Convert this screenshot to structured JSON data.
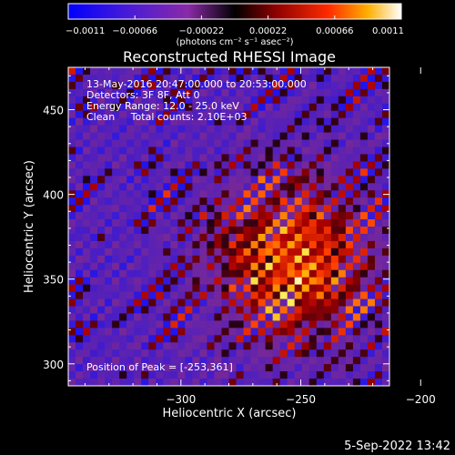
{
  "chart_data": {
    "type": "heatmap",
    "title": "Reconstructed RHESSI Image",
    "xlabel": "Heliocentric X (arcsec)",
    "ylabel": "Heliocentric Y (arcsec)",
    "xlim": [
      -347,
      -213
    ],
    "ylim": [
      287,
      475
    ],
    "xticks": [
      -300,
      -250,
      -200
    ],
    "xtick_labels": [
      "−300",
      "−250",
      "−200"
    ],
    "yticks": [
      300,
      350,
      400,
      450
    ],
    "ytick_labels": [
      "300",
      "350",
      "400",
      "450"
    ],
    "grid": false,
    "colormap": "RHESSI hot (blue-purple-black-red-yellow-white)",
    "colorbar": {
      "min": -0.0011,
      "max": 0.0011,
      "ticks": [
        -0.0011,
        -0.00066,
        -0.00022,
        0.00022,
        0.00066,
        0.0011
      ],
      "tick_labels": [
        "−0.0011",
        "−0.00066",
        "−0.00022",
        "0.00022",
        "0.00066",
        "0.0011"
      ],
      "units_label": "(photons cm⁻² s⁻¹ asec⁻²)"
    },
    "peak": {
      "x": -253,
      "y": 361
    },
    "annotations": [
      "13-May-2016 20:47:00.000 to 20:53:00.000",
      "Detectors: 3F 8F, Att 0",
      "Energy Range: 12.0 - 25.0 keV",
      "Clean     Total counts: 2.10E+03",
      "Position of Peak = [-253,361]"
    ]
  },
  "footer": {
    "timestamp": "5-Sep-2022 13:42"
  },
  "colors": {
    "background": "#000000",
    "foreground": "#ffffff",
    "low": "#2a1a8c",
    "mid": "#7a2aa0",
    "high": "#ffff80"
  }
}
